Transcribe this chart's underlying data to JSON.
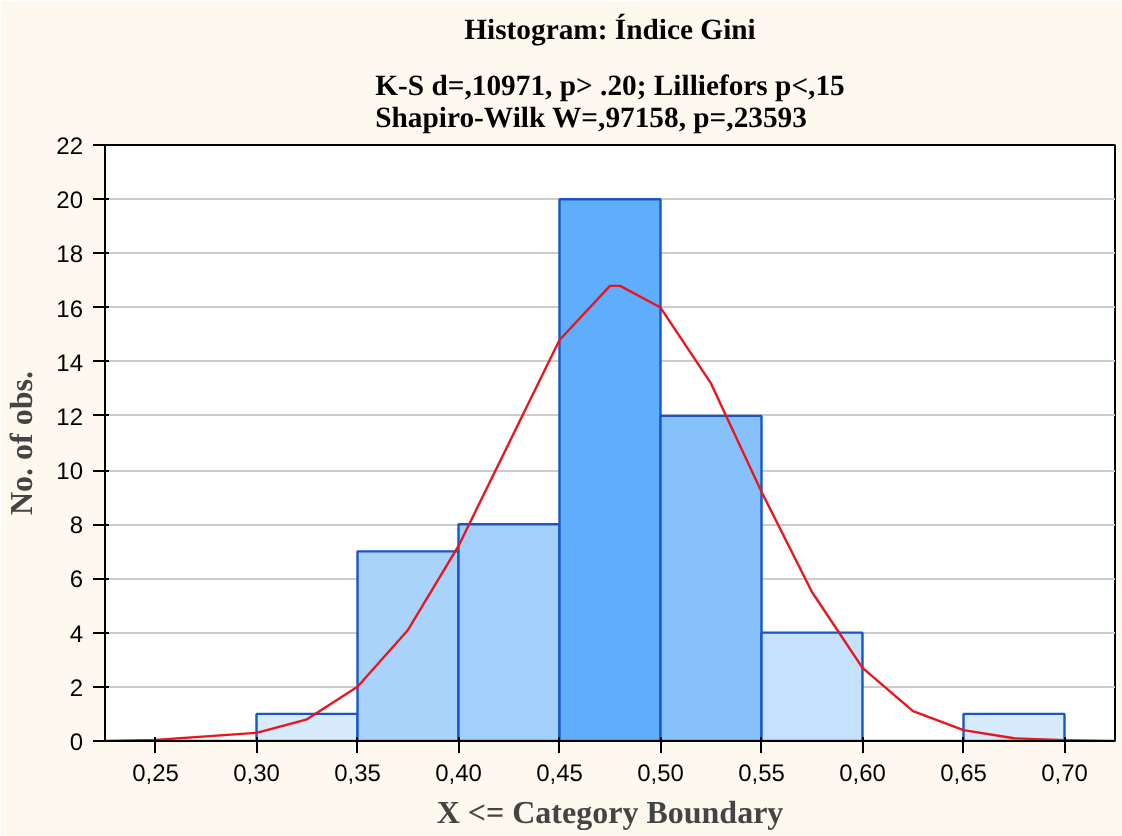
{
  "chart_data": {
    "type": "histogram",
    "title": "Histogram: Índice Gini",
    "subtitle": "K-S d=,10971, p> .20; Lilliefors p<,15\nShapiro-Wilk W=,97158, p=,23593",
    "xlabel": "X <= Category Boundary",
    "ylabel": "No. of obs.",
    "bins": [
      0.25,
      0.3,
      0.35,
      0.4,
      0.45,
      0.5,
      0.55,
      0.6,
      0.65,
      0.7
    ],
    "values": [
      0,
      1,
      7,
      8,
      20,
      12,
      4,
      0,
      1
    ],
    "colors": [
      "#1a56c8",
      "#d8ebfd",
      "#a9d3fb",
      "#a3cffb",
      "#5eaefc",
      "#86c1fb",
      "#c5e1fd",
      "#1a56c8",
      "#d8ebfd"
    ],
    "series": [
      {
        "type": "line",
        "color": "#e8141e",
        "x": [
          0.225,
          0.25,
          0.3,
          0.325,
          0.35,
          0.375,
          0.4,
          0.425,
          0.45,
          0.475,
          0.48,
          0.5,
          0.525,
          0.55,
          0.575,
          0.6,
          0.625,
          0.65,
          0.675,
          0.7,
          0.725
        ],
        "values": [
          0,
          0.04,
          0.3,
          0.8,
          2.0,
          4.1,
          7.2,
          11.0,
          14.8,
          16.8,
          16.8,
          16.0,
          13.2,
          9.2,
          5.5,
          2.7,
          1.1,
          0.4,
          0.1,
          0.03,
          0
        ]
      }
    ],
    "xlim": [
      0.225,
      0.725
    ],
    "ylim": [
      0,
      22
    ],
    "xticks": [
      {
        "value": 0.25,
        "label": "0,25"
      },
      {
        "value": 0.3,
        "label": "0,30"
      },
      {
        "value": 0.35,
        "label": "0,35"
      },
      {
        "value": 0.4,
        "label": "0,40"
      },
      {
        "value": 0.45,
        "label": "0,45"
      },
      {
        "value": 0.5,
        "label": "0,50"
      },
      {
        "value": 0.55,
        "label": "0,55"
      },
      {
        "value": 0.6,
        "label": "0,60"
      },
      {
        "value": 0.65,
        "label": "0,65"
      },
      {
        "value": 0.7,
        "label": "0,70"
      }
    ],
    "yticks": [
      0,
      2,
      4,
      6,
      8,
      10,
      12,
      14,
      16,
      18,
      20,
      22
    ],
    "grid": "y"
  }
}
